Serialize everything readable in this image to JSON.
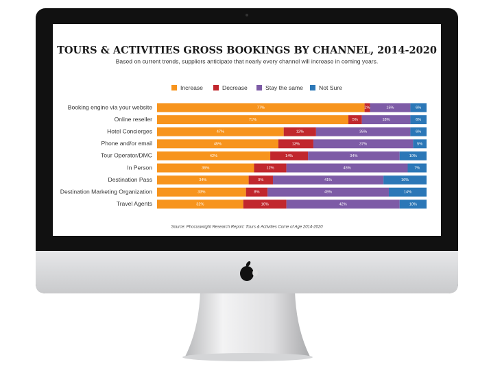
{
  "chart_data": {
    "type": "stacked-bar-horizontal",
    "title": "TOURS & ACTIVITIES GROSS BOOKINGS BY CHANNEL, 2014-2020",
    "subtitle": "Based on current trends, suppliers anticipate that nearly every channel will increase in coming years.",
    "source": "Source: Phocuswright Research Report: Tours & Activities Come of Age 2014-2020",
    "categories": [
      "Booking engine via your website",
      "Online reseller",
      "Hotel Concierges",
      "Phone and/or email",
      "Tour Operator/DMC",
      "In Person",
      "Destination Pass",
      "Destination Marketing Organization",
      "Travel Agents"
    ],
    "xlim": [
      0,
      100
    ],
    "series": [
      {
        "name": "Increase",
        "color": "#f7941d",
        "values": [
          77,
          71,
          47,
          45,
          42,
          36,
          34,
          33,
          32
        ],
        "value_labels": [
          "77%",
          "71%",
          "47%",
          "45%",
          "42%",
          "36%",
          "34%",
          "33%",
          "32%"
        ]
      },
      {
        "name": "Decrease",
        "color": "#c1272d",
        "values": [
          2,
          5,
          12,
          13,
          14,
          12,
          9,
          8,
          16
        ],
        "value_labels": [
          "2%",
          "5%",
          "12%",
          "13%",
          "14%",
          "12%",
          "9%",
          "8%",
          "16%"
        ]
      },
      {
        "name": "Stay the same",
        "color": "#7d5ba6",
        "values": [
          15,
          18,
          35,
          37,
          34,
          45,
          41,
          45,
          42
        ],
        "value_labels": [
          "15%",
          "18%",
          "35%",
          "37%",
          "34%",
          "45%",
          "41%",
          "45%",
          "42%"
        ]
      },
      {
        "name": "Not Sure",
        "color": "#2b77b7",
        "values": [
          6,
          6,
          6,
          5,
          10,
          7,
          16,
          14,
          10
        ],
        "value_labels": [
          "6%",
          "6%",
          "6%",
          "5%",
          "10%",
          "7%",
          "16%",
          "14%",
          "10%"
        ]
      }
    ]
  }
}
